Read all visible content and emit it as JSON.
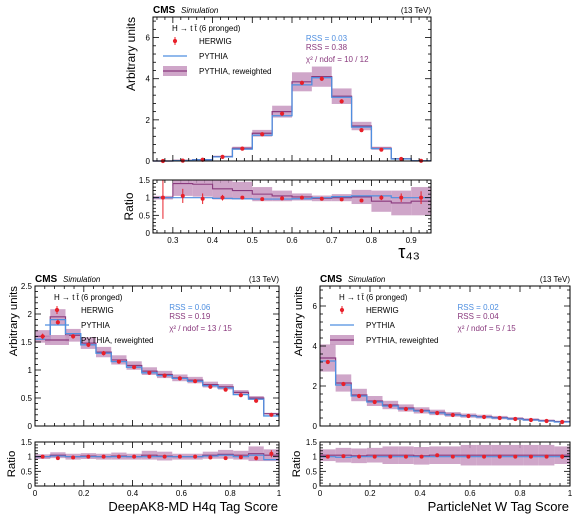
{
  "colors": {
    "herwig": "#e8202a",
    "pythia": "#4f8fe0",
    "reweighted_line": "#8a3a7e",
    "reweighted_band": "#c796c0",
    "rss_pythia": "#4f8fe0",
    "rss_reweighted": "#8a3a7e",
    "chi2": "#8a3a7e"
  },
  "chart_data": [
    {
      "type": "histogram",
      "cms_label": "CMS",
      "sim_label": "Simulation",
      "energy_label": "(13 TeV)",
      "legend_title": "H → t t̄ (6 pronged)",
      "legend": [
        "HERWIG",
        "PYTHIA",
        "PYTHIA, reweighted"
      ],
      "rss_pythia": "RSS = 0.03",
      "rss_reweighted": "RSS = 0.38",
      "chi2": "χ² / ndof = 10 / 12",
      "ylabel": "Arbitrary units",
      "ratio_ylabel": "Ratio",
      "xlabel": "τ₄₃",
      "xlim": [
        0.25,
        0.95
      ],
      "ylim": [
        0,
        7
      ],
      "ratio_ylim": [
        0,
        1.5
      ],
      "xticks": [
        0.3,
        0.4,
        0.5,
        0.6,
        0.7,
        0.8,
        0.9
      ],
      "yticks": [
        0,
        2,
        4,
        6
      ],
      "ratio_yticks": [
        0,
        0.5,
        1,
        1.5
      ],
      "bin_edges": [
        0.25,
        0.3,
        0.35,
        0.4,
        0.45,
        0.5,
        0.55,
        0.6,
        0.65,
        0.7,
        0.75,
        0.8,
        0.85,
        0.9,
        0.95
      ],
      "herwig": [
        0.0,
        0.02,
        0.06,
        0.2,
        0.6,
        1.3,
        2.3,
        3.8,
        4.0,
        2.9,
        1.5,
        0.55,
        0.1,
        0.01
      ],
      "herwig_err": [
        0.01,
        0.02,
        0.03,
        0.05,
        0.06,
        0.08,
        0.1,
        0.1,
        0.1,
        0.1,
        0.08,
        0.06,
        0.03,
        0.01
      ],
      "pythia": [
        0.0,
        0.02,
        0.06,
        0.2,
        0.58,
        1.25,
        2.2,
        3.7,
        4.05,
        3.1,
        1.65,
        0.6,
        0.1,
        0.01
      ],
      "reweighted": [
        0.0,
        0.03,
        0.07,
        0.22,
        0.62,
        1.35,
        2.4,
        3.85,
        4.1,
        3.15,
        1.7,
        0.62,
        0.11,
        0.01
      ],
      "band_frac": 0.12,
      "ratio_herwig": [
        1.0,
        1.05,
        0.97,
        1.0,
        1.0,
        0.96,
        0.98,
        1.0,
        0.97,
        0.95,
        0.92,
        1.0,
        1.0,
        1.0
      ],
      "ratio_herwig_err": [
        0.6,
        0.2,
        0.15,
        0.08,
        0.04,
        0.03,
        0.02,
        0.02,
        0.02,
        0.03,
        0.04,
        0.07,
        0.12,
        0.18
      ],
      "ratio_pythia": [
        1.0,
        1.0,
        1.0,
        0.98,
        0.97,
        0.96,
        0.96,
        0.97,
        1.0,
        1.03,
        1.05,
        1.05,
        1.0,
        1.0
      ],
      "ratio_reweighted": [
        1.0,
        1.4,
        1.38,
        1.25,
        1.2,
        1.1,
        1.05,
        1.02,
        0.98,
        1.0,
        1.02,
        0.9,
        0.85,
        0.9
      ],
      "ratio_band": [
        0.05,
        0.35,
        0.35,
        0.3,
        0.25,
        0.2,
        0.15,
        0.1,
        0.08,
        0.1,
        0.2,
        0.3,
        0.35,
        0.4
      ]
    },
    {
      "type": "histogram",
      "cms_label": "CMS",
      "sim_label": "Simulation",
      "energy_label": "(13 TeV)",
      "legend_title": "H → t t̄ (6 pronged)",
      "legend": [
        "HERWIG",
        "PYTHIA",
        "PYTHIA, reweighted"
      ],
      "rss_pythia": "RSS = 0.06",
      "rss_reweighted": "RSS = 0.19",
      "chi2": "χ² / ndof = 13 / 15",
      "ylabel": "Arbitrary units",
      "ratio_ylabel": "Ratio",
      "xlabel": "DeepAK8-MD H4q Tag Score",
      "xlim": [
        0,
        1
      ],
      "ylim": [
        0,
        2.5
      ],
      "ratio_ylim": [
        0,
        1.5
      ],
      "xticks": [
        0.0,
        0.2,
        0.4,
        0.6,
        0.8,
        1.0
      ],
      "yticks": [
        0,
        0.5,
        1,
        1.5,
        2,
        2.5
      ],
      "ratio_yticks": [
        0,
        0.5,
        1,
        1.5
      ],
      "bin_edges": [
        0,
        0.0625,
        0.125,
        0.1875,
        0.25,
        0.3125,
        0.375,
        0.4375,
        0.5,
        0.5625,
        0.625,
        0.6875,
        0.75,
        0.8125,
        0.875,
        0.9375,
        1.0
      ],
      "herwig": [
        1.6,
        1.85,
        1.6,
        1.45,
        1.3,
        1.15,
        1.05,
        0.95,
        0.9,
        0.85,
        0.8,
        0.7,
        0.65,
        0.55,
        0.45,
        0.2
      ],
      "herwig_err": [
        0.05,
        0.05,
        0.04,
        0.04,
        0.04,
        0.03,
        0.03,
        0.03,
        0.03,
        0.03,
        0.03,
        0.03,
        0.03,
        0.03,
        0.03,
        0.02
      ],
      "pythia": [
        1.55,
        1.9,
        1.65,
        1.45,
        1.3,
        1.15,
        1.05,
        0.95,
        0.9,
        0.85,
        0.8,
        0.72,
        0.68,
        0.56,
        0.48,
        0.18
      ],
      "reweighted": [
        1.6,
        1.95,
        1.62,
        1.48,
        1.32,
        1.18,
        1.08,
        0.98,
        0.92,
        0.86,
        0.82,
        0.74,
        0.7,
        0.6,
        0.5,
        0.22
      ],
      "band_frac": 0.07,
      "ratio_herwig": [
        1.0,
        0.95,
        0.97,
        1.0,
        1.0,
        1.0,
        1.0,
        1.0,
        1.0,
        1.0,
        1.0,
        0.97,
        0.95,
        0.98,
        0.95,
        1.1
      ],
      "ratio_herwig_err": [
        0.03,
        0.03,
        0.03,
        0.03,
        0.03,
        0.03,
        0.03,
        0.03,
        0.04,
        0.04,
        0.04,
        0.05,
        0.05,
        0.06,
        0.07,
        0.12
      ],
      "ratio_pythia": [
        1.0,
        1.02,
        1.0,
        1.0,
        1.0,
        1.0,
        1.0,
        1.0,
        1.0,
        1.0,
        1.0,
        1.02,
        1.05,
        1.0,
        1.05,
        0.9
      ],
      "ratio_reweighted": [
        1.0,
        1.05,
        1.0,
        1.02,
        1.0,
        1.02,
        1.0,
        1.05,
        1.02,
        1.0,
        1.0,
        1.05,
        1.08,
        1.05,
        1.1,
        1.05
      ],
      "ratio_band": [
        0.08,
        0.1,
        0.1,
        0.1,
        0.1,
        0.12,
        0.1,
        0.15,
        0.15,
        0.1,
        0.1,
        0.12,
        0.15,
        0.15,
        0.25,
        0.2
      ]
    },
    {
      "type": "histogram",
      "cms_label": "CMS",
      "sim_label": "Simulation",
      "energy_label": "(13 TeV)",
      "legend_title": "H → t t̄ (6 pronged)",
      "legend": [
        "HERWIG",
        "PYTHIA",
        "PYTHIA, reweighted"
      ],
      "rss_pythia": "RSS = 0.02",
      "rss_reweighted": "RSS = 0.04",
      "chi2": "χ² / ndof = 5 / 15",
      "ylabel": "Arbitrary units",
      "ratio_ylabel": "Ratio",
      "xlabel": "ParticleNet W Tag Score",
      "xlim": [
        0,
        1
      ],
      "ylim": [
        0,
        7
      ],
      "ratio_ylim": [
        0,
        1.5
      ],
      "xticks": [
        0.0,
        0.2,
        0.4,
        0.6,
        0.8,
        1.0
      ],
      "yticks": [
        0,
        2,
        4,
        6
      ],
      "ratio_yticks": [
        0,
        0.5,
        1,
        1.5
      ],
      "bin_edges": [
        0,
        0.0625,
        0.125,
        0.1875,
        0.25,
        0.3125,
        0.375,
        0.4375,
        0.5,
        0.5625,
        0.625,
        0.6875,
        0.75,
        0.8125,
        0.875,
        0.9375,
        1.0
      ],
      "herwig": [
        3.2,
        2.1,
        1.5,
        1.2,
        1.0,
        0.85,
        0.75,
        0.65,
        0.55,
        0.5,
        0.45,
        0.4,
        0.35,
        0.3,
        0.25,
        0.2
      ],
      "herwig_err": [
        0.08,
        0.05,
        0.04,
        0.04,
        0.03,
        0.03,
        0.03,
        0.03,
        0.03,
        0.02,
        0.02,
        0.02,
        0.02,
        0.02,
        0.02,
        0.02
      ],
      "pythia": [
        3.25,
        2.05,
        1.5,
        1.2,
        1.0,
        0.85,
        0.75,
        0.65,
        0.55,
        0.5,
        0.45,
        0.4,
        0.35,
        0.3,
        0.25,
        0.2
      ],
      "reweighted": [
        3.4,
        2.15,
        1.55,
        1.25,
        1.05,
        0.9,
        0.78,
        0.68,
        0.58,
        0.52,
        0.47,
        0.42,
        0.37,
        0.32,
        0.27,
        0.22
      ],
      "band_frac": 0.2,
      "ratio_herwig": [
        1.0,
        1.02,
        1.0,
        1.0,
        1.0,
        1.0,
        1.0,
        1.05,
        1.0,
        1.0,
        1.0,
        1.0,
        1.0,
        1.0,
        1.0,
        1.0
      ],
      "ratio_herwig_err": [
        0.03,
        0.03,
        0.03,
        0.03,
        0.03,
        0.04,
        0.04,
        0.04,
        0.04,
        0.05,
        0.05,
        0.05,
        0.05,
        0.06,
        0.06,
        0.08
      ],
      "ratio_pythia": [
        1.0,
        0.98,
        1.0,
        1.0,
        1.0,
        1.0,
        1.0,
        1.0,
        1.0,
        1.0,
        1.0,
        1.0,
        1.0,
        1.0,
        1.0,
        1.0
      ],
      "ratio_reweighted": [
        1.05,
        1.05,
        1.03,
        1.05,
        1.05,
        1.05,
        1.03,
        1.05,
        1.05,
        1.05,
        1.05,
        1.05,
        1.05,
        1.05,
        1.05,
        1.05
      ],
      "ratio_band": [
        0.2,
        0.25,
        0.25,
        0.25,
        0.3,
        0.3,
        0.3,
        0.3,
        0.3,
        0.35,
        0.35,
        0.35,
        0.35,
        0.35,
        0.35,
        0.3
      ]
    }
  ]
}
